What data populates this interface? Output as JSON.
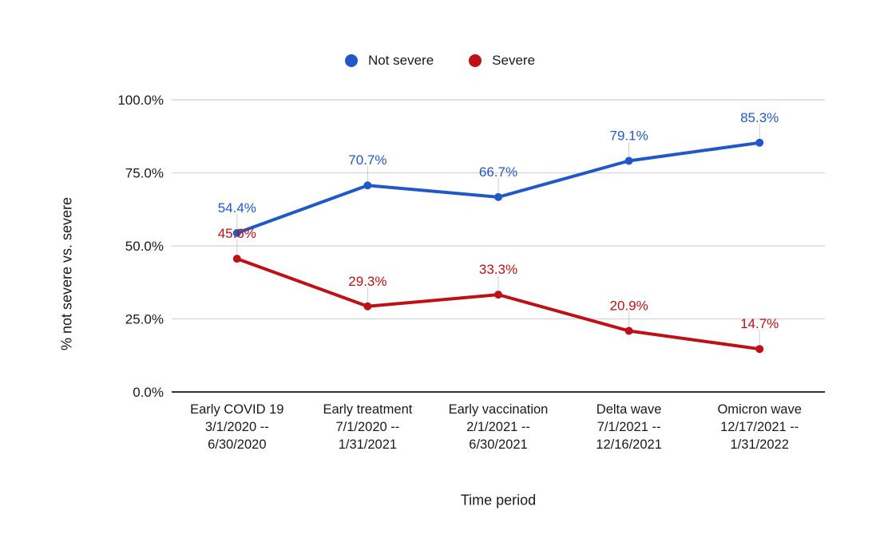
{
  "chart_data": {
    "type": "line",
    "title": "",
    "xlabel": "Time period",
    "ylabel": "% not severe vs. severe",
    "ylim": [
      0,
      100
    ],
    "grid": true,
    "legend_position": "top",
    "yticks": [
      {
        "value": 100,
        "label": "100.0%"
      },
      {
        "value": 75,
        "label": "75.0%"
      },
      {
        "value": 50,
        "label": "50.0%"
      },
      {
        "value": 25,
        "label": "25.0%"
      },
      {
        "value": 0,
        "label": "0.0%"
      }
    ],
    "categories": [
      {
        "label_lines": [
          "Early COVID 19",
          "3/1/2020 --",
          "6/30/2020"
        ]
      },
      {
        "label_lines": [
          "Early treatment",
          "7/1/2020 --",
          "1/31/2021"
        ]
      },
      {
        "label_lines": [
          "Early vaccination",
          "2/1/2021 --",
          "6/30/2021"
        ]
      },
      {
        "label_lines": [
          "Delta wave",
          "7/1/2021 --",
          "12/16/2021"
        ]
      },
      {
        "label_lines": [
          "Omicron wave",
          "12/17/2021 --",
          "1/31/2022"
        ]
      }
    ],
    "series": [
      {
        "name": "Not severe",
        "color": "#2158c9",
        "values": [
          54.4,
          70.7,
          66.7,
          79.1,
          85.3
        ],
        "point_labels": [
          "54.4%",
          "70.7%",
          "66.7%",
          "79.1%",
          "85.3%"
        ]
      },
      {
        "name": "Severe",
        "color": "#bf1016",
        "values": [
          45.6,
          29.3,
          33.3,
          20.9,
          14.7
        ],
        "point_labels": [
          "45.6%",
          "29.3%",
          "33.3%",
          "20.9%",
          "14.7%"
        ]
      }
    ],
    "colors": {
      "gridline": "#d9d9d9",
      "axis_line": "#333333",
      "text": "#1a1a1a",
      "leader_line": "#cccccc",
      "background": "#ffffff"
    }
  }
}
